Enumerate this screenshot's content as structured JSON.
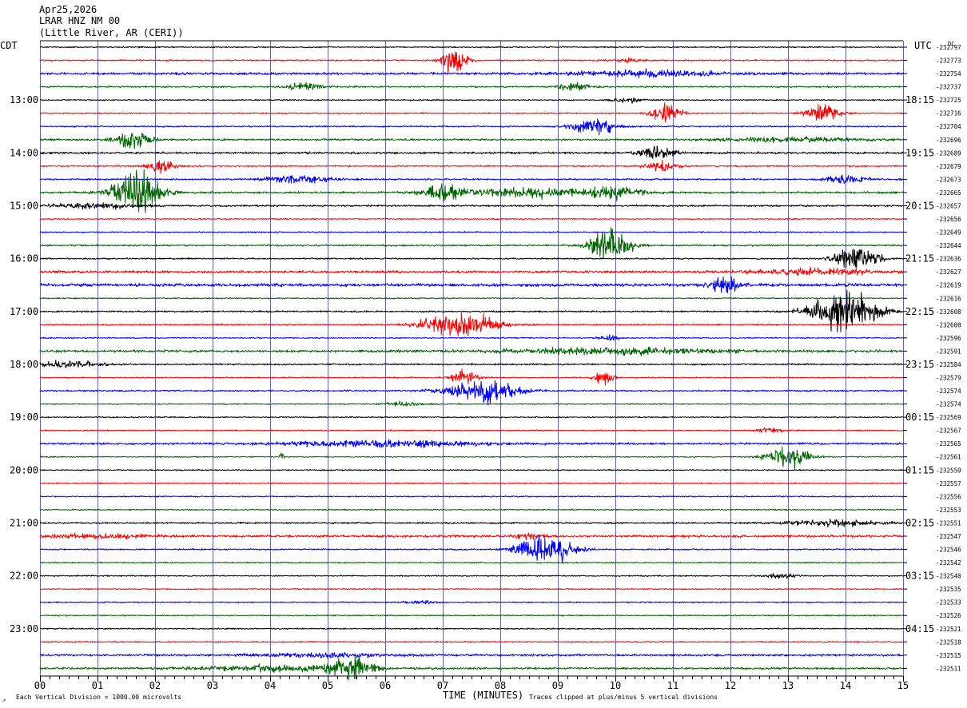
{
  "header": {
    "date": "Apr25,2026",
    "station": "LRAR HNZ NM 00",
    "location": "(Little River, AR (CERI))"
  },
  "left_timezone": "CDT",
  "right_timezone": "UTC",
  "dc_label": "DC",
  "left_hour_labels": [
    "13:00",
    "14:00",
    "15:00",
    "16:00",
    "17:00",
    "18:00",
    "19:00",
    "20:00",
    "21:00",
    "22:00",
    "23:00"
  ],
  "right_hour_labels": [
    "18:15",
    "19:15",
    "20:15",
    "21:15",
    "22:15",
    "23:15",
    "00:15",
    "01:15",
    "02:15",
    "03:15",
    "04:15"
  ],
  "dc_values": [
    "-232797",
    "-232773",
    "-232754",
    "-232737",
    "-232725",
    "-232716",
    "-232704",
    "-232696",
    "-232689",
    "-232679",
    "-232673",
    "-232665",
    "-232657",
    "-232656",
    "-232649",
    "-232644",
    "-232636",
    "-232627",
    "-232619",
    "-232616",
    "-232608",
    "-232600",
    "-232596",
    "-232591",
    "-232584",
    "-232579",
    "-232574",
    "-232574",
    "-232569",
    "-232567",
    "-232565",
    "-232561",
    "-232559",
    "-232557",
    "-232556",
    "-232553",
    "-232551",
    "-232547",
    "-232546",
    "-232542",
    "-232540",
    "-232535",
    "-232533",
    "-232526",
    "-232521",
    "-232518",
    "-232515",
    "-232511"
  ],
  "x_axis": {
    "title": "TIME (MINUTES)",
    "tick_labels": [
      "00",
      "01",
      "02",
      "03",
      "04",
      "05",
      "06",
      "07",
      "08",
      "09",
      "10",
      "11",
      "12",
      "13",
      "14",
      "15"
    ]
  },
  "footer": {
    "scale_note": "Each Vertical Division = 1000.00 microvolts",
    "clip_note": "Traces clipped at plus/minus 5 vertical divisions"
  },
  "colors": {
    "trace_cycle": [
      "#000000",
      "#ff0000",
      "#0000ff",
      "#006400"
    ],
    "grid": "#000080"
  },
  "chart_data": {
    "type": "helicorder",
    "title": "LRAR HNZ NM 00",
    "xlabel": "TIME (MINUTES)",
    "xlim": [
      0,
      15
    ],
    "trace_count": 48,
    "minutes_per_trace": 15,
    "start_time_local": "12:00",
    "traces": [
      {
        "noise": 0.6,
        "events": []
      },
      {
        "noise": 0.7,
        "events": [
          {
            "t": 7.2,
            "amp": 14,
            "dur": 0.35
          },
          {
            "t": 10.2,
            "amp": 2,
            "dur": 0.5
          }
        ]
      },
      {
        "noise": 1.2,
        "events": [
          {
            "t": 10.5,
            "amp": 3,
            "dur": 2.0
          }
        ]
      },
      {
        "noise": 0.7,
        "events": [
          {
            "t": 4.6,
            "amp": 4,
            "dur": 0.5
          },
          {
            "t": 9.3,
            "amp": 3,
            "dur": 0.6
          }
        ]
      },
      {
        "noise": 0.6,
        "events": [
          {
            "t": 10.2,
            "amp": 3,
            "dur": 0.4
          }
        ]
      },
      {
        "noise": 0.6,
        "events": [
          {
            "t": 10.9,
            "amp": 10,
            "dur": 0.45
          },
          {
            "t": 13.6,
            "amp": 9,
            "dur": 0.5
          }
        ]
      },
      {
        "noise": 0.7,
        "events": [
          {
            "t": 9.6,
            "amp": 9,
            "dur": 0.6
          }
        ]
      },
      {
        "noise": 1.0,
        "events": [
          {
            "t": 1.6,
            "amp": 9,
            "dur": 0.5
          },
          {
            "t": 13.0,
            "amp": 2,
            "dur": 2.0
          }
        ]
      },
      {
        "noise": 1.0,
        "events": [
          {
            "t": 10.7,
            "amp": 8,
            "dur": 0.5
          }
        ]
      },
      {
        "noise": 0.7,
        "events": [
          {
            "t": 2.1,
            "amp": 6,
            "dur": 0.4
          },
          {
            "t": 10.8,
            "amp": 5,
            "dur": 0.5
          }
        ]
      },
      {
        "noise": 0.8,
        "events": [
          {
            "t": 4.5,
            "amp": 4,
            "dur": 1.0
          },
          {
            "t": 14.0,
            "amp": 4,
            "dur": 0.6
          }
        ]
      },
      {
        "noise": 1.0,
        "events": [
          {
            "t": 1.7,
            "amp": 22,
            "dur": 0.7
          },
          {
            "t": 7.0,
            "amp": 8,
            "dur": 0.6
          },
          {
            "t": 8.5,
            "amp": 5,
            "dur": 1.5
          },
          {
            "t": 10.0,
            "amp": 6,
            "dur": 0.8
          }
        ]
      },
      {
        "noise": 0.9,
        "events": [
          {
            "t": 1.0,
            "amp": 3,
            "dur": 1.2
          }
        ]
      },
      {
        "noise": 0.6,
        "events": []
      },
      {
        "noise": 0.6,
        "events": []
      },
      {
        "noise": 0.8,
        "events": [
          {
            "t": 9.9,
            "amp": 16,
            "dur": 0.6
          }
        ]
      },
      {
        "noise": 0.7,
        "events": [
          {
            "t": 14.2,
            "amp": 14,
            "dur": 0.6
          }
        ]
      },
      {
        "noise": 1.2,
        "events": [
          {
            "t": 13.5,
            "amp": 3,
            "dur": 1.8
          }
        ]
      },
      {
        "noise": 1.5,
        "events": [
          {
            "t": 11.9,
            "amp": 9,
            "dur": 0.4
          }
        ]
      },
      {
        "noise": 0.6,
        "events": []
      },
      {
        "noise": 0.8,
        "events": [
          {
            "t": 14.0,
            "amp": 24,
            "dur": 0.9
          }
        ]
      },
      {
        "noise": 0.7,
        "events": [
          {
            "t": 7.3,
            "amp": 12,
            "dur": 1.1
          }
        ]
      },
      {
        "noise": 0.6,
        "events": [
          {
            "t": 9.9,
            "amp": 3,
            "dur": 0.3
          }
        ]
      },
      {
        "noise": 1.2,
        "events": [
          {
            "t": 10.0,
            "amp": 3,
            "dur": 3.0
          }
        ]
      },
      {
        "noise": 0.8,
        "events": [
          {
            "t": 0.5,
            "amp": 3,
            "dur": 1.0
          }
        ]
      },
      {
        "noise": 0.6,
        "events": [
          {
            "t": 7.4,
            "amp": 7,
            "dur": 0.4
          },
          {
            "t": 9.8,
            "amp": 6,
            "dur": 0.3
          }
        ]
      },
      {
        "noise": 0.8,
        "events": [
          {
            "t": 7.7,
            "amp": 12,
            "dur": 1.0
          }
        ]
      },
      {
        "noise": 0.6,
        "events": [
          {
            "t": 6.3,
            "amp": 2,
            "dur": 0.6
          }
        ]
      },
      {
        "noise": 0.6,
        "events": []
      },
      {
        "noise": 0.6,
        "events": [
          {
            "t": 12.7,
            "amp": 2,
            "dur": 0.5
          }
        ]
      },
      {
        "noise": 1.0,
        "events": [
          {
            "t": 6.0,
            "amp": 3,
            "dur": 3.0
          }
        ]
      },
      {
        "noise": 0.6,
        "events": [
          {
            "t": 4.2,
            "amp": 5,
            "dur": 0.05
          },
          {
            "t": 13.0,
            "amp": 10,
            "dur": 0.6
          }
        ]
      },
      {
        "noise": 0.6,
        "events": []
      },
      {
        "noise": 0.6,
        "events": []
      },
      {
        "noise": 0.6,
        "events": []
      },
      {
        "noise": 0.6,
        "events": []
      },
      {
        "noise": 0.8,
        "events": [
          {
            "t": 13.8,
            "amp": 3,
            "dur": 1.5
          }
        ]
      },
      {
        "noise": 1.2,
        "events": [
          {
            "t": 1.0,
            "amp": 2,
            "dur": 1.5
          },
          {
            "t": 8.5,
            "amp": 3,
            "dur": 0.4
          }
        ]
      },
      {
        "noise": 0.7,
        "events": [
          {
            "t": 8.8,
            "amp": 14,
            "dur": 0.8
          }
        ]
      },
      {
        "noise": 0.6,
        "events": []
      },
      {
        "noise": 0.6,
        "events": [
          {
            "t": 12.9,
            "amp": 3,
            "dur": 0.4
          }
        ]
      },
      {
        "noise": 0.6,
        "events": []
      },
      {
        "noise": 0.6,
        "events": [
          {
            "t": 6.6,
            "amp": 2,
            "dur": 0.4
          }
        ]
      },
      {
        "noise": 0.6,
        "events": []
      },
      {
        "noise": 0.6,
        "events": []
      },
      {
        "noise": 0.6,
        "events": []
      },
      {
        "noise": 1.0,
        "events": [
          {
            "t": 5.0,
            "amp": 2,
            "dur": 2.0
          }
        ]
      },
      {
        "noise": 1.0,
        "events": [
          {
            "t": 5.4,
            "amp": 12,
            "dur": 0.6
          },
          {
            "t": 4.0,
            "amp": 3,
            "dur": 2.0
          }
        ]
      }
    ]
  }
}
